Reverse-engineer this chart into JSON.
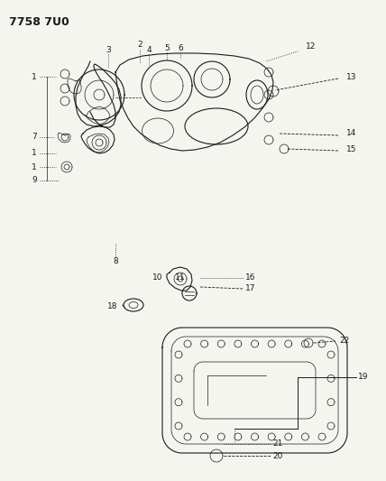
{
  "title": "7758 7U0",
  "bg": "#f5f5f0",
  "lc": "#1a1a1a",
  "title_fs": 9,
  "label_fs": 6.5,
  "fig_w": 4.28,
  "fig_h": 5.33,
  "dpi": 100
}
